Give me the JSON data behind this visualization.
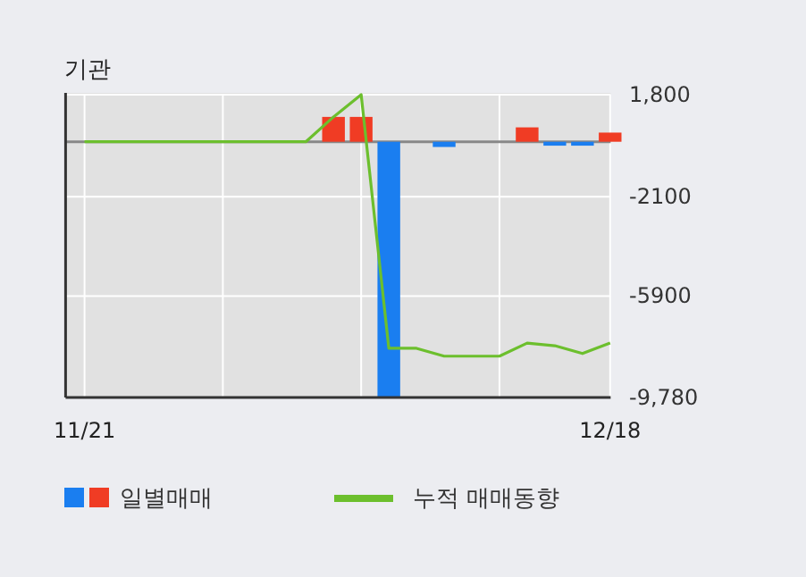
{
  "chart_data": {
    "type": "bar",
    "title": "기관",
    "categories": [
      "11/21",
      null,
      null,
      null,
      null,
      null,
      null,
      null,
      null,
      null,
      null,
      null,
      null,
      null,
      null,
      null,
      null,
      null,
      null,
      "12/18"
    ],
    "series": [
      {
        "name": "일별매매",
        "values": [
          null,
          null,
          null,
          null,
          null,
          null,
          null,
          null,
          null,
          950,
          950,
          -9780,
          null,
          -200,
          null,
          null,
          550,
          -150,
          -150,
          350
        ],
        "colors": [
          "#f03c24",
          "#f03c24",
          "#f03c24",
          "#f03c24",
          "#f03c24",
          "#f03c24",
          "#f03c24",
          "#f03c24",
          "#f03c24",
          "#f03c24",
          "#f03c24",
          "#1a7ef0",
          "#1a7ef0",
          "#1a7ef0",
          "#1a7ef0",
          "#1a7ef0",
          "#f03c24",
          "#1a7ef0",
          "#1a7ef0",
          "#f03c24"
        ]
      },
      {
        "name": "누적 매매동향",
        "type": "line",
        "color": "#6cbf2d",
        "values": [
          0,
          0,
          0,
          0,
          0,
          0,
          0,
          0,
          0,
          950,
          1800,
          -7900,
          -7900,
          -8200,
          -8200,
          -8200,
          -7700,
          -7800,
          -8100,
          -7700
        ]
      }
    ],
    "ylim": [
      -9780,
      1800
    ],
    "yticks": [
      {
        "value": 1800,
        "label": "1,800"
      },
      {
        "value": -2100,
        "label": "-2100"
      },
      {
        "value": -5900,
        "label": "-5900"
      },
      {
        "value": -9780,
        "label": "-9,780"
      }
    ],
    "grid": true,
    "legend": "bottom"
  }
}
